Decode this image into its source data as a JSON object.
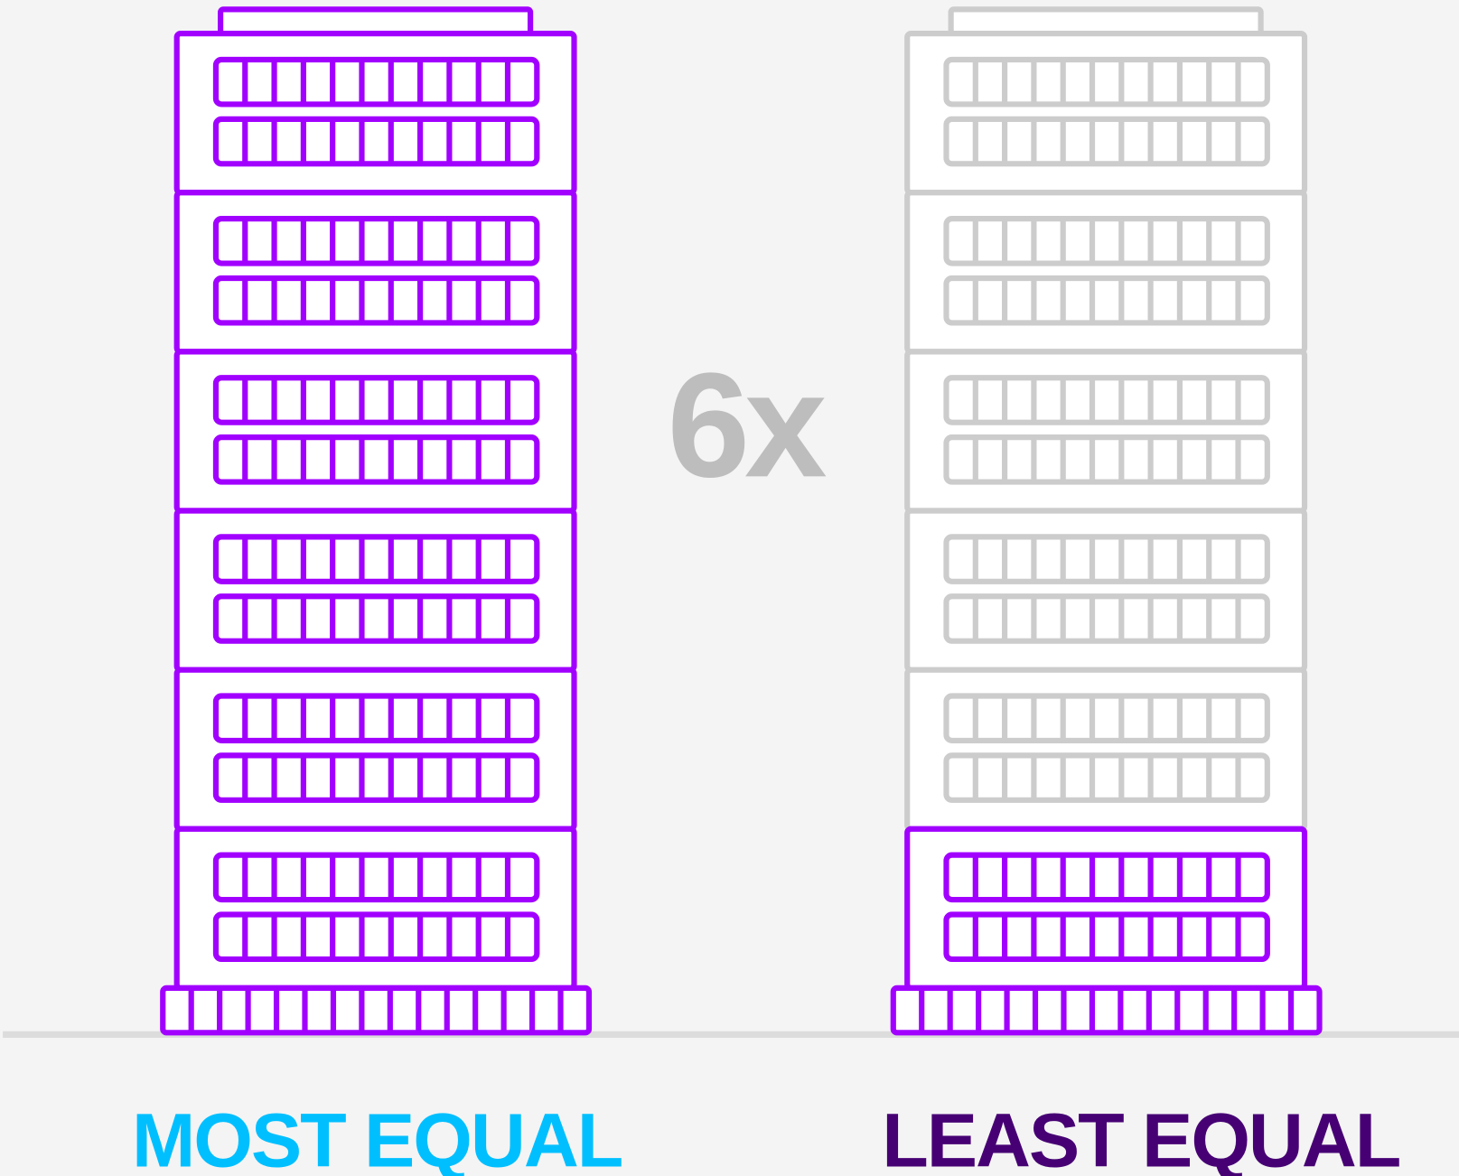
{
  "center_label": "6x",
  "labels": {
    "left": "MOST EQUAL",
    "right": "LEAST EQUAL"
  }
}
